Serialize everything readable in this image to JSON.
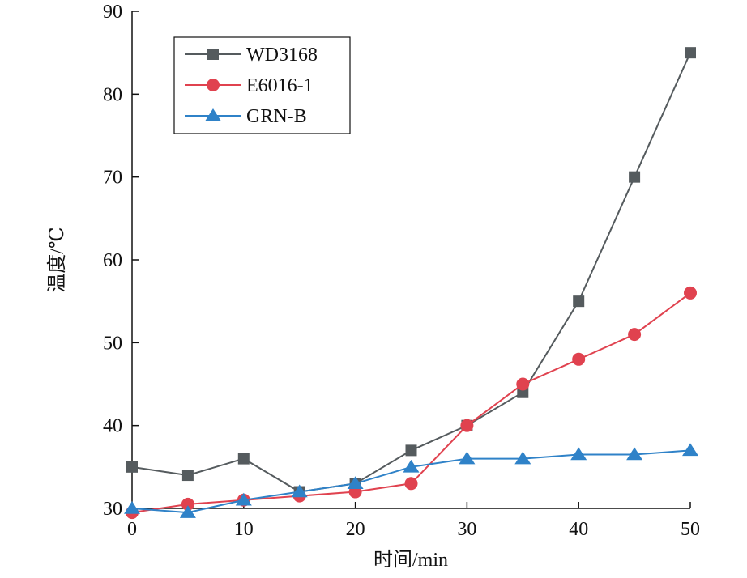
{
  "chart_data": {
    "type": "line",
    "title": "",
    "xlabel": "时间/min",
    "ylabel": "温度/℃",
    "xlim": [
      0,
      50
    ],
    "ylim": [
      30,
      90
    ],
    "x_ticks": [
      0,
      10,
      20,
      30,
      40,
      50
    ],
    "y_ticks": [
      30,
      40,
      50,
      60,
      70,
      80,
      90
    ],
    "grid": false,
    "legend_position": "top-left",
    "x": [
      0,
      5,
      10,
      15,
      20,
      25,
      30,
      35,
      40,
      45,
      50
    ],
    "series": [
      {
        "name": "WD3168",
        "marker": "square",
        "color": "#555b5e",
        "values": [
          35,
          34,
          36,
          32,
          33,
          37,
          40,
          44,
          55,
          70,
          85
        ]
      },
      {
        "name": "E6016-1",
        "marker": "circle",
        "color": "#e0424f",
        "values": [
          29.5,
          30.5,
          31,
          31.5,
          32,
          33,
          40,
          45,
          48,
          51,
          56
        ]
      },
      {
        "name": "GRN-B",
        "marker": "triangle",
        "color": "#2f82c8",
        "values": [
          30,
          29.5,
          31,
          32,
          33,
          35,
          36,
          36,
          36.5,
          36.5,
          37
        ]
      }
    ]
  }
}
